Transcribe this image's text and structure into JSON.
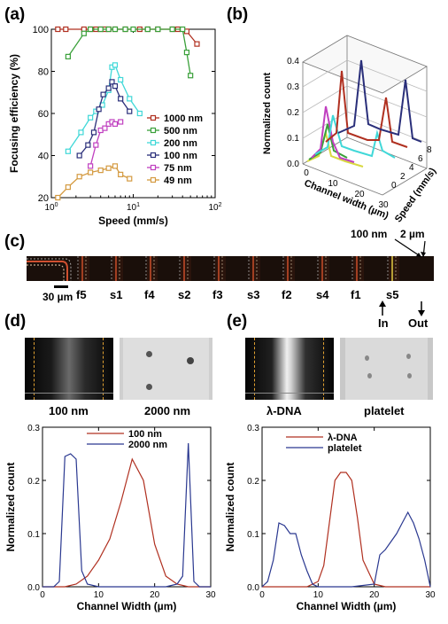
{
  "panels": {
    "a": {
      "label": "(a)"
    },
    "b": {
      "label": "(b)"
    },
    "c": {
      "label": "(c)"
    },
    "d": {
      "label": "(d)"
    },
    "e": {
      "label": "(e)"
    }
  },
  "panel_c": {
    "annot_100nm": "100 nm",
    "annot_2um": "2 µm",
    "scale_bar": "30 µm",
    "labels": [
      "f5",
      "s1",
      "f4",
      "s2",
      "f3",
      "s3",
      "f2",
      "s4",
      "f1",
      "s5"
    ],
    "in_label": "In",
    "out_label": "Out"
  },
  "panel_d_images": [
    "100 nm",
    "2000 nm"
  ],
  "panel_e_images": [
    "λ-DNA",
    "platelet"
  ],
  "colors": {
    "red": "#b03020",
    "green": "#3aa03a",
    "cyan": "#40d8d8",
    "navy": "#2a2f7a",
    "magenta": "#c040c0",
    "orange": "#d49a40",
    "yellow": "#d8d840",
    "dblue": "#2a3890"
  },
  "chart_data": [
    {
      "type": "line",
      "panel": "a",
      "xlabel": "Speed (mm/s)",
      "ylabel": "Focusing efficiency (%)",
      "xscale": "log",
      "xlim": [
        1,
        100
      ],
      "ylim": [
        20,
        100
      ],
      "xticks": [
        "10⁰",
        "10¹",
        "10²"
      ],
      "yticks": [
        "20",
        "40",
        "60",
        "80",
        "100"
      ],
      "legend_position": "lower-right",
      "series": [
        {
          "name": "1000 nm",
          "color": "#b03020",
          "x": [
            1.2,
            1.5,
            2.5,
            3,
            3.5,
            4,
            4.5,
            5,
            6,
            8,
            12,
            15,
            20,
            30,
            35,
            45,
            60
          ],
          "y": [
            100,
            100,
            100,
            100,
            100,
            100,
            100,
            100,
            100,
            100,
            100,
            100,
            100,
            100,
            100,
            99,
            93
          ]
        },
        {
          "name": "500 nm",
          "color": "#3aa03a",
          "x": [
            1.6,
            2.5,
            3,
            4,
            5,
            6,
            8,
            10,
            15,
            20,
            30,
            40,
            45,
            50
          ],
          "y": [
            87,
            98,
            100,
            100,
            100,
            100,
            100,
            100,
            100,
            100,
            100,
            100,
            89,
            78
          ]
        },
        {
          "name": "200 nm",
          "color": "#40d8d8",
          "x": [
            1.6,
            2.3,
            3,
            3.5,
            4.2,
            5,
            5.5,
            6,
            7,
            9,
            12
          ],
          "y": [
            42,
            51,
            58,
            61,
            64,
            71,
            82,
            83,
            76,
            67,
            60
          ]
        },
        {
          "name": "100 nm",
          "color": "#2a2f7a",
          "x": [
            2.2,
            2.8,
            3.3,
            3.8,
            4.3,
            5,
            5.5,
            6,
            7,
            9
          ],
          "y": [
            40,
            45,
            51,
            62,
            69,
            72,
            75,
            73,
            67,
            61
          ]
        },
        {
          "name": "75 nm",
          "color": "#c040c0",
          "x": [
            3,
            3.5,
            4,
            4.5,
            5,
            5.5,
            6,
            7
          ],
          "y": [
            35,
            45,
            52,
            53,
            55,
            56,
            55,
            56
          ]
        },
        {
          "name": "49 nm",
          "color": "#d49a40",
          "x": [
            1.2,
            1.6,
            2.2,
            3,
            4,
            5,
            6,
            7,
            9
          ],
          "y": [
            20,
            25,
            30,
            32,
            33,
            34,
            35,
            31,
            29
          ]
        }
      ]
    },
    {
      "type": "line",
      "panel": "b",
      "xlabel": "Channel width (µm)",
      "ylabel": "Normalized count",
      "zlabel": "Speed (mm/s)",
      "xticks": [
        "0",
        "10",
        "20",
        "30"
      ],
      "yticks": [
        "0.0",
        "0.1",
        "0.2",
        "0.3",
        "0.4"
      ],
      "zticks": [
        "0",
        "2",
        "4",
        "6",
        "8"
      ]
    },
    {
      "type": "line",
      "panel": "d",
      "xlabel": "Channel Width (µm)",
      "ylabel": "Normalized count",
      "xlim": [
        0,
        30
      ],
      "ylim": [
        0,
        0.3
      ],
      "xticks": [
        "0",
        "10",
        "20",
        "30"
      ],
      "yticks": [
        "0.0",
        "0.1",
        "0.2",
        "0.3"
      ],
      "legend_position": "top-center",
      "series": [
        {
          "name": "100 nm",
          "color": "#b03020",
          "x": [
            0,
            2,
            4,
            6,
            8,
            10,
            12,
            14,
            16,
            18,
            20,
            22,
            24,
            26,
            28,
            30
          ],
          "y": [
            0,
            0,
            0,
            0.005,
            0.02,
            0.05,
            0.09,
            0.16,
            0.24,
            0.2,
            0.08,
            0.02,
            0.005,
            0,
            0,
            0
          ]
        },
        {
          "name": "2000 nm",
          "color": "#2a3890",
          "x": [
            0,
            2,
            3,
            4,
            5,
            6,
            7,
            8,
            10,
            14,
            18,
            22,
            24,
            25,
            26,
            27,
            28,
            30
          ],
          "y": [
            0,
            0,
            0.01,
            0.245,
            0.25,
            0.24,
            0.03,
            0.005,
            0,
            0,
            0,
            0,
            0.005,
            0.02,
            0.27,
            0.01,
            0,
            0
          ]
        }
      ]
    },
    {
      "type": "line",
      "panel": "e",
      "xlabel": "Channel Width (µm)",
      "ylabel": "Normalized count",
      "xlim": [
        0,
        30
      ],
      "ylim": [
        0,
        0.3
      ],
      "xticks": [
        "0",
        "10",
        "20",
        "30"
      ],
      "yticks": [
        "0.0",
        "0.1",
        "0.2",
        "0.3"
      ],
      "legend_position": "top-center",
      "series": [
        {
          "name": "λ-DNA",
          "color": "#b03020",
          "x": [
            0,
            2,
            4,
            6,
            8,
            10,
            11,
            12,
            13,
            14,
            15,
            16,
            17,
            18,
            20,
            22,
            24,
            26,
            28,
            30
          ],
          "y": [
            0,
            0,
            0,
            0,
            0,
            0.01,
            0.04,
            0.12,
            0.2,
            0.215,
            0.215,
            0.2,
            0.13,
            0.05,
            0.005,
            0,
            0,
            0,
            0,
            0
          ]
        },
        {
          "name": "platelet",
          "color": "#2a3890",
          "x": [
            0,
            1,
            2,
            3,
            4,
            5,
            6,
            7,
            8,
            9,
            10,
            12,
            16,
            20,
            21,
            22,
            24,
            25,
            26,
            27,
            28,
            29,
            30
          ],
          "y": [
            0,
            0.01,
            0.05,
            0.12,
            0.115,
            0.1,
            0.1,
            0.06,
            0.03,
            0.005,
            0,
            0,
            0,
            0.005,
            0.06,
            0.07,
            0.1,
            0.12,
            0.14,
            0.12,
            0.09,
            0.05,
            0
          ]
        }
      ]
    }
  ]
}
